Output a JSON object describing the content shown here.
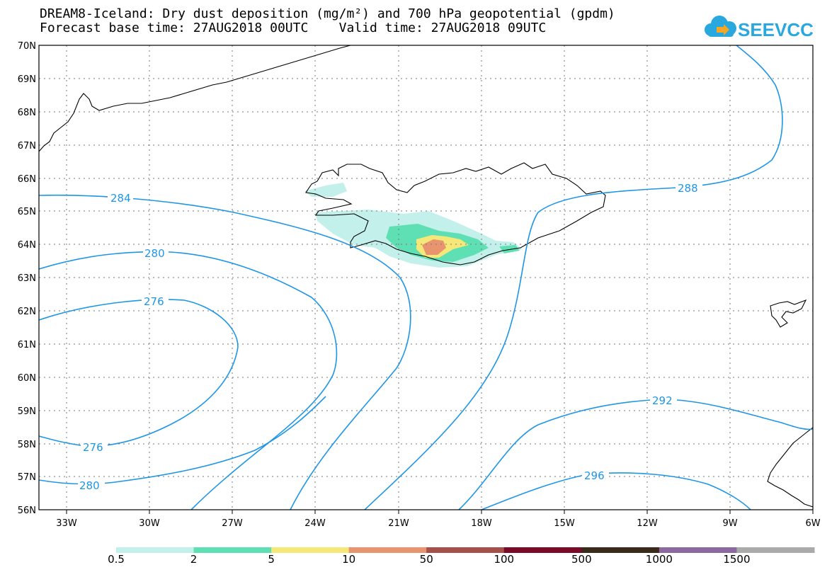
{
  "header": {
    "title_line1": "DREAM8-Iceland: Dry dust deposition (mg/m²) and 700 hPa geopotential (gpdm)",
    "title_line2": "Forecast base time: 27AUG2018 00UTC    Valid time: 27AUG2018 09UTC",
    "logo_text": "SEEVCCC",
    "logo_colors": {
      "cloud": "#29a8e0",
      "text": "#29a8e0",
      "arrow": "#f5a623"
    }
  },
  "map": {
    "lat_labels": [
      "70N",
      "69N",
      "68N",
      "67N",
      "66N",
      "65N",
      "64N",
      "63N",
      "62N",
      "61N",
      "60N",
      "59N",
      "58N",
      "57N",
      "56N"
    ],
    "lon_labels": [
      "33W",
      "30W",
      "27W",
      "24W",
      "21W",
      "18W",
      "15W",
      "12W",
      "9W",
      "6W"
    ],
    "contour_color": "#1e96e6",
    "coast_color": "#000000",
    "grid": true,
    "contour_labels": [
      "284",
      "280",
      "276",
      "276",
      "280",
      "288",
      "292",
      "296"
    ]
  },
  "colorbar": {
    "colors": [
      "#c3f0ea",
      "#5fe0b4",
      "#f5e878",
      "#e8946e",
      "#a6504a",
      "#7a0a28",
      "#3a2a1a",
      "#8a6aa0",
      "#aaaaaa"
    ],
    "labels": [
      "0.5",
      "2",
      "5",
      "10",
      "50",
      "100",
      "500",
      "1000",
      "1500"
    ]
  }
}
